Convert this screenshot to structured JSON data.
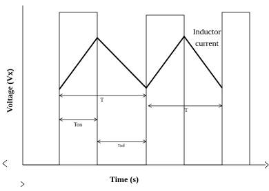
{
  "axes": {
    "y_label": "Voltage (Vx)",
    "x_label": "Time (s)"
  },
  "annotations": {
    "inductor_current": [
      "Inductor",
      "current"
    ],
    "period_1": "T",
    "period_2": "T",
    "on_time": "Ton",
    "off_time": "Toff"
  }
}
